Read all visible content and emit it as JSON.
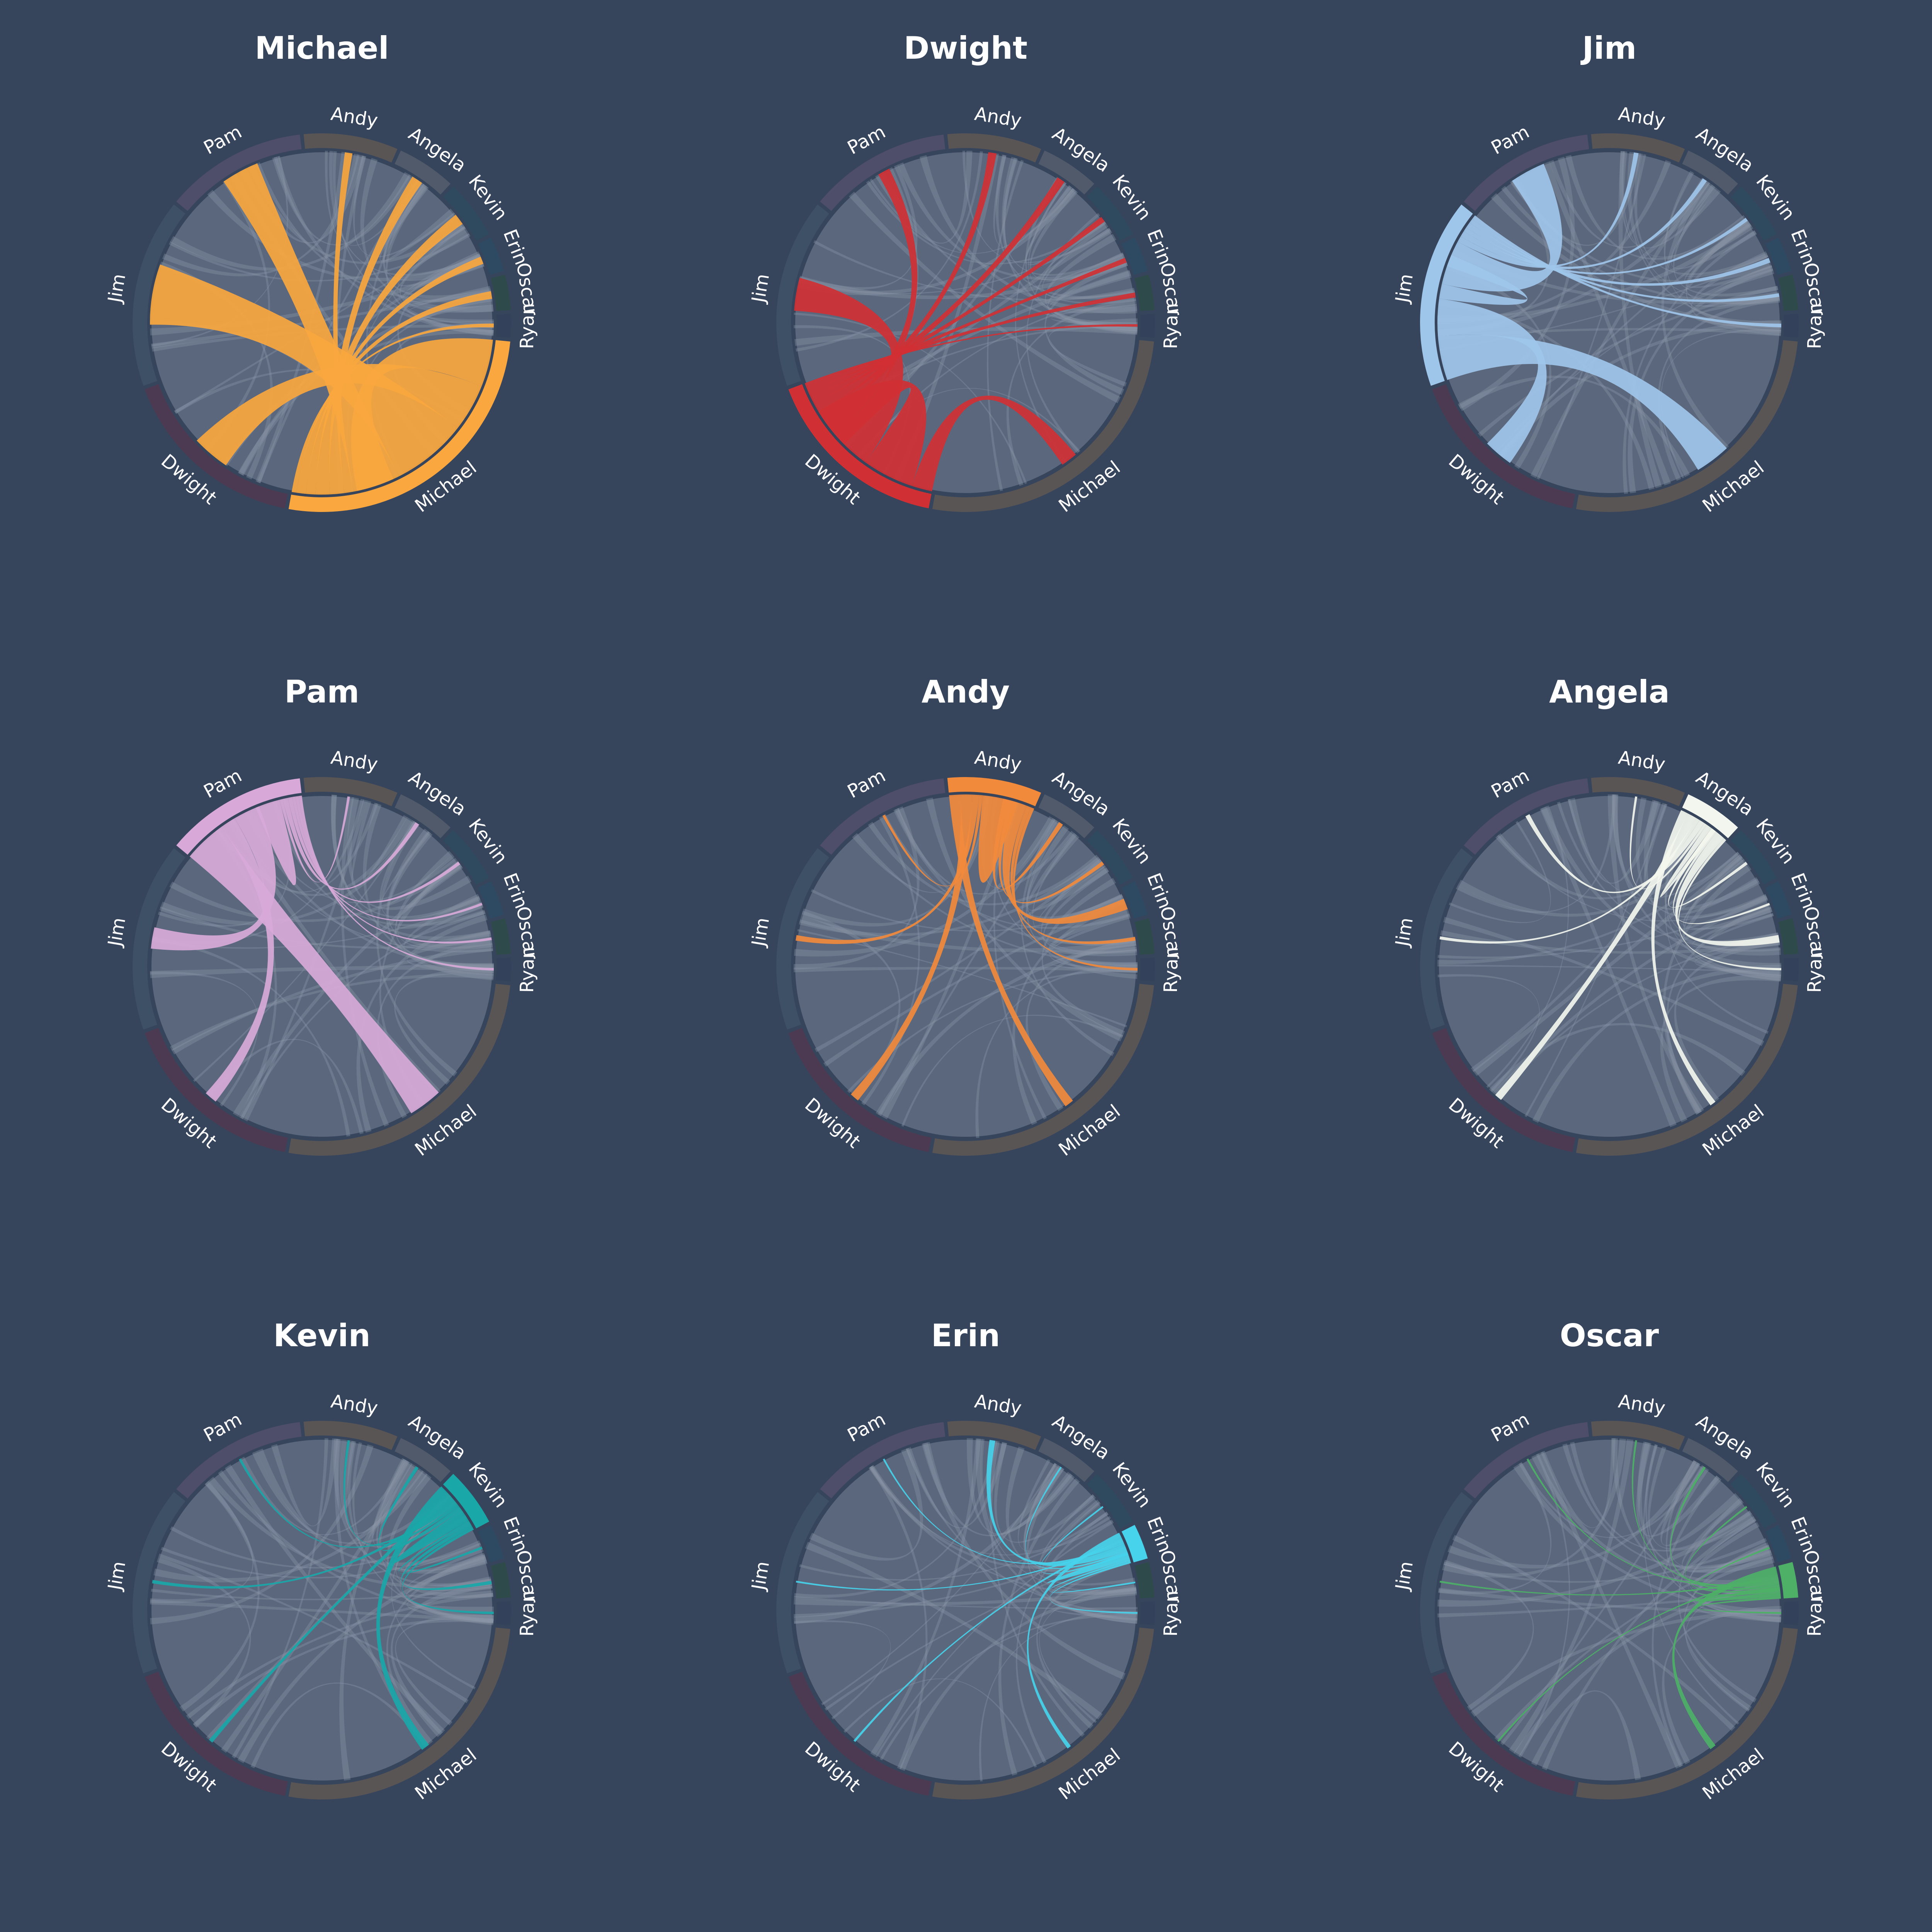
{
  "colors": {
    "background": "#37455c",
    "disc_fill": "#5b677d",
    "disc_stroke": "#37455c",
    "ribbon_grey": "#8c97a8",
    "segment_track": {
      "Michael": "#5a5555",
      "Dwight": "#4b3a51",
      "Jim": "#3e5066",
      "Pam": "#4e4e6a",
      "Andy": "#5a5555",
      "Angela": "#505a6b",
      "Kevin": "#2f4a5e",
      "Erin": "#2e4a62",
      "Oscar": "#2e4a4a",
      "Ryan": "#33425a"
    }
  },
  "segment_names": [
    "Michael",
    "Dwight",
    "Jim",
    "Pam",
    "Andy",
    "Angela",
    "Kevin",
    "Erin",
    "Oscar",
    "Ryan"
  ],
  "chart_data": [
    {
      "type": "chord",
      "title": "Michael",
      "highlight": "Michael",
      "highlight_color": "#f9a73e",
      "segments": [
        "Michael",
        "Dwight",
        "Jim",
        "Pam",
        "Andy",
        "Angela",
        "Kevin",
        "Erin",
        "Oscar",
        "Ryan"
      ],
      "segment_values": [
        26,
        16,
        16,
        12,
        8,
        5,
        5,
        3,
        3,
        2
      ],
      "links_from_highlight": {
        "Michael": 5,
        "Dwight": 5,
        "Jim": 8,
        "Pam": 5,
        "Andy": 1,
        "Angela": 1.5,
        "Kevin": 1.5,
        "Erin": 1,
        "Oscar": 1,
        "Ryan": 0.5
      }
    },
    {
      "type": "chord",
      "title": "Dwight",
      "highlight": "Dwight",
      "highlight_color": "#d03033",
      "segments": [
        "Michael",
        "Dwight",
        "Jim",
        "Pam",
        "Andy",
        "Angela",
        "Kevin",
        "Erin",
        "Oscar",
        "Ryan"
      ],
      "segment_values": [
        26,
        16,
        16,
        12,
        8,
        5,
        5,
        3,
        3,
        2
      ],
      "links_from_highlight": {
        "Michael": 2,
        "Dwight": 5,
        "Jim": 4,
        "Pam": 1.5,
        "Andy": 1,
        "Angela": 1,
        "Kevin": 0.7,
        "Erin": 0.6,
        "Oscar": 0.6,
        "Ryan": 0.3
      }
    },
    {
      "type": "chord",
      "title": "Jim",
      "highlight": "Jim",
      "highlight_color": "#9ec6ea",
      "segments": [
        "Michael",
        "Dwight",
        "Jim",
        "Pam",
        "Andy",
        "Angela",
        "Kevin",
        "Erin",
        "Oscar",
        "Ryan"
      ],
      "segment_values": [
        26,
        16,
        16,
        12,
        8,
        5,
        5,
        3,
        3,
        2
      ],
      "links_from_highlight": {
        "Michael": 3,
        "Dwight": 2.5,
        "Jim": 1,
        "Pam": 3,
        "Andy": 0.4,
        "Angela": 0.4,
        "Kevin": 0.3,
        "Erin": 0.4,
        "Oscar": 0.3,
        "Ryan": 0.3
      }
    },
    {
      "type": "chord",
      "title": "Pam",
      "highlight": "Pam",
      "highlight_color": "#d8a9d8",
      "segments": [
        "Michael",
        "Dwight",
        "Jim",
        "Pam",
        "Andy",
        "Angela",
        "Kevin",
        "Erin",
        "Oscar",
        "Ryan"
      ],
      "segment_values": [
        26,
        16,
        16,
        12,
        8,
        5,
        5,
        3,
        3,
        2
      ],
      "links_from_highlight": {
        "Michael": 4,
        "Dwight": 1.5,
        "Jim": 2.5,
        "Pam": 2,
        "Andy": 0.3,
        "Angela": 0.5,
        "Kevin": 0.4,
        "Erin": 0.3,
        "Oscar": 0.3,
        "Ryan": 0.3
      }
    },
    {
      "type": "chord",
      "title": "Andy",
      "highlight": "Andy",
      "highlight_color": "#f28a3c",
      "segments": [
        "Michael",
        "Dwight",
        "Jim",
        "Pam",
        "Andy",
        "Angela",
        "Kevin",
        "Erin",
        "Oscar",
        "Ryan"
      ],
      "segment_values": [
        26,
        16,
        16,
        12,
        8,
        5,
        5,
        3,
        3,
        2
      ],
      "links_from_highlight": {
        "Michael": 1,
        "Dwight": 1,
        "Jim": 0.6,
        "Pam": 0.3,
        "Andy": 1.8,
        "Angela": 0.5,
        "Kevin": 0.4,
        "Erin": 1.2,
        "Oscar": 0.4,
        "Ryan": 0.3
      }
    },
    {
      "type": "chord",
      "title": "Angela",
      "highlight": "Angela",
      "highlight_color": "#f3f6ee",
      "segments": [
        "Michael",
        "Dwight",
        "Jim",
        "Pam",
        "Andy",
        "Angela",
        "Kevin",
        "Erin",
        "Oscar",
        "Ryan"
      ],
      "segment_values": [
        26,
        16,
        16,
        12,
        8,
        5,
        5,
        3,
        3,
        2
      ],
      "links_from_highlight": {
        "Michael": 0.8,
        "Dwight": 1,
        "Jim": 0.4,
        "Pam": 0.6,
        "Andy": 0.3,
        "Angela": 0.6,
        "Kevin": 0.4,
        "Erin": 0.3,
        "Oscar": 1,
        "Ryan": 0.3
      }
    },
    {
      "type": "chord",
      "title": "Kevin",
      "highlight": "Kevin",
      "highlight_color": "#1aa7a8",
      "segments": [
        "Michael",
        "Dwight",
        "Jim",
        "Pam",
        "Andy",
        "Angela",
        "Kevin",
        "Erin",
        "Oscar",
        "Ryan"
      ],
      "segment_values": [
        26,
        16,
        16,
        12,
        8,
        5,
        5,
        3,
        3,
        2
      ],
      "links_from_highlight": {
        "Michael": 1,
        "Dwight": 0.5,
        "Jim": 0.4,
        "Pam": 0.3,
        "Andy": 0.3,
        "Angela": 0.4,
        "Kevin": 1.2,
        "Erin": 0.3,
        "Oscar": 0.4,
        "Ryan": 0.3
      }
    },
    {
      "type": "chord",
      "title": "Erin",
      "highlight": "Erin",
      "highlight_color": "#47d3ec",
      "segments": [
        "Michael",
        "Dwight",
        "Jim",
        "Pam",
        "Andy",
        "Angela",
        "Kevin",
        "Erin",
        "Oscar",
        "Ryan"
      ],
      "segment_values": [
        26,
        16,
        16,
        12,
        8,
        5,
        5,
        3,
        3,
        2
      ],
      "links_from_highlight": {
        "Michael": 0.7,
        "Dwight": 0.4,
        "Jim": 0.3,
        "Pam": 0.3,
        "Andy": 1,
        "Angela": 0.3,
        "Kevin": 0.3,
        "Erin": 0.6,
        "Oscar": 0.3,
        "Ryan": 0.3
      }
    },
    {
      "type": "chord",
      "title": "Oscar",
      "highlight": "Oscar",
      "highlight_color": "#4db066",
      "segments": [
        "Michael",
        "Dwight",
        "Jim",
        "Pam",
        "Andy",
        "Angela",
        "Kevin",
        "Erin",
        "Oscar",
        "Ryan"
      ],
      "segment_values": [
        26,
        16,
        16,
        12,
        8,
        5,
        5,
        3,
        3,
        2
      ],
      "links_from_highlight": {
        "Michael": 1,
        "Dwight": 0.3,
        "Jim": 0.3,
        "Pam": 0.3,
        "Andy": 0.3,
        "Angela": 0.4,
        "Kevin": 0.3,
        "Erin": 0.3,
        "Oscar": 0.6,
        "Ryan": 0.3
      }
    }
  ]
}
